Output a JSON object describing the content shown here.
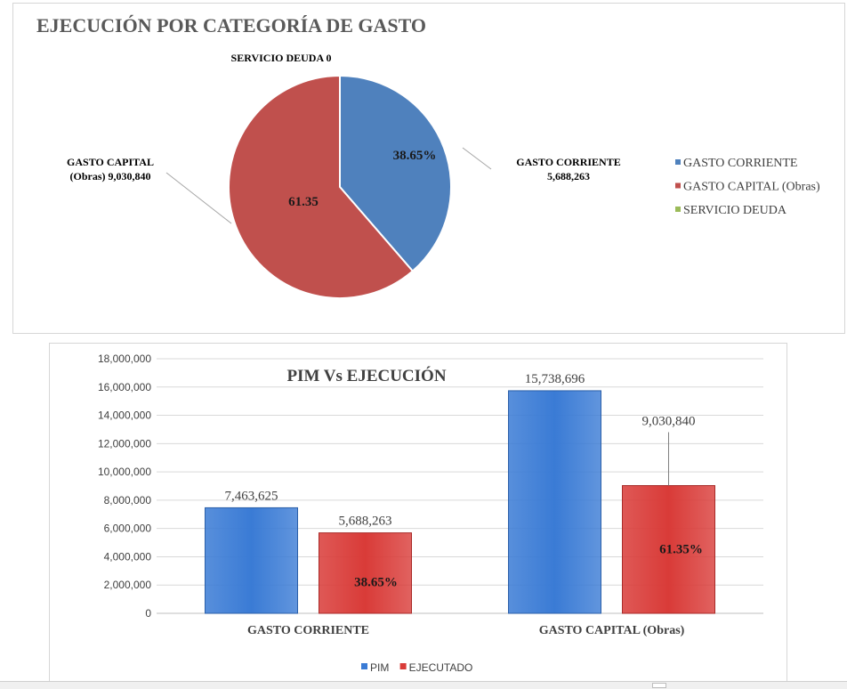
{
  "chart_data": [
    {
      "type": "pie",
      "title": "EJECUCIÓN POR CATEGORÍA DE GASTO",
      "slices": [
        {
          "name": "GASTO CORRIENTE",
          "value": 5688263,
          "pct_label": "38.65%",
          "callout": [
            "GASTO CORRIENTE",
            "5,688,263"
          ],
          "color": "#4f81bd"
        },
        {
          "name": "GASTO CAPITAL (Obras)",
          "value": 9030840,
          "pct_label": "61.35",
          "callout": [
            "GASTO CAPITAL",
            "(Obras) 9,030,840"
          ],
          "color": "#c0504d"
        },
        {
          "name": "SERVICIO DEUDA",
          "value": 0,
          "pct_label": "",
          "callout": [
            "SERVICIO DEUDA 0"
          ],
          "color": "#9bbb59"
        }
      ],
      "legend": [
        "GASTO CORRIENTE",
        "GASTO CAPITAL (Obras)",
        "SERVICIO DEUDA"
      ],
      "legend_position": "right"
    },
    {
      "type": "bar",
      "title": "PIM Vs EJECUCIÓN",
      "categories": [
        "GASTO CORRIENTE",
        "GASTO CAPITAL (Obras)"
      ],
      "series": [
        {
          "name": "PIM",
          "values": [
            7463625,
            15738696
          ],
          "value_labels": [
            "7,463,625",
            "15,738,696"
          ],
          "color": "#3a7bd5"
        },
        {
          "name": "EJECUTADO",
          "values": [
            5688263,
            9030840
          ],
          "value_labels": [
            "5,688,263",
            "9,030,840"
          ],
          "inner_labels": [
            "38.65%",
            "61.35%"
          ],
          "color": "#d93b38"
        }
      ],
      "ylim": [
        0,
        18000000
      ],
      "yticks": [
        0,
        2000000,
        4000000,
        6000000,
        8000000,
        10000000,
        12000000,
        14000000,
        16000000,
        18000000
      ],
      "ytick_labels": [
        "0",
        "2,000,000",
        "4,000,000",
        "6,000,000",
        "8,000,000",
        "10,000,000",
        "12,000,000",
        "14,000,000",
        "16,000,000",
        "18,000,000"
      ],
      "legend": [
        "PIM",
        "EJECUTADO"
      ],
      "legend_position": "bottom",
      "grid": true
    }
  ]
}
